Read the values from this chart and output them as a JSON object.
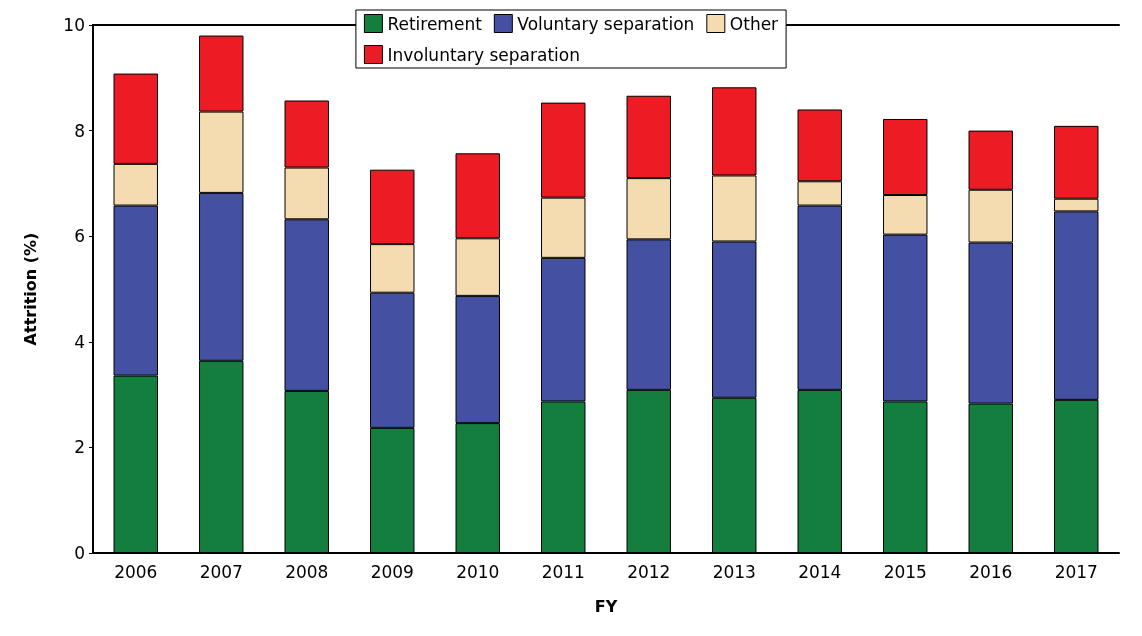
{
  "chart_data": {
    "type": "bar",
    "stacked": true,
    "xlabel": "FY",
    "ylabel": "Attrition (%)",
    "categories": [
      "2006",
      "2007",
      "2008",
      "2009",
      "2010",
      "2011",
      "2012",
      "2013",
      "2014",
      "2015",
      "2016",
      "2017"
    ],
    "series": [
      {
        "name": "Retirement",
        "color": "#137e3e",
        "values": [
          3.36,
          3.64,
          3.07,
          2.37,
          2.46,
          2.87,
          3.09,
          2.94,
          3.09,
          2.87,
          2.83,
          2.9
        ]
      },
      {
        "name": "Voluntary separation",
        "color": "#4450a2",
        "values": [
          3.22,
          3.18,
          3.25,
          2.56,
          2.41,
          2.72,
          2.85,
          2.96,
          3.49,
          3.16,
          3.05,
          3.57
        ]
      },
      {
        "name": "Other",
        "color": "#f5dbb0",
        "values": [
          0.79,
          1.54,
          0.98,
          0.92,
          1.09,
          1.14,
          1.16,
          1.25,
          0.46,
          0.75,
          1.0,
          0.24
        ]
      },
      {
        "name": "Involuntary separation",
        "color": "#ed1c24",
        "values": [
          1.71,
          1.44,
          1.27,
          1.41,
          1.61,
          1.8,
          1.56,
          1.67,
          1.36,
          1.44,
          1.12,
          1.38
        ]
      }
    ],
    "ylim": [
      0,
      10
    ],
    "yticks": [
      0,
      2,
      4,
      6,
      8,
      10
    ],
    "grid": false,
    "legend": "top"
  }
}
